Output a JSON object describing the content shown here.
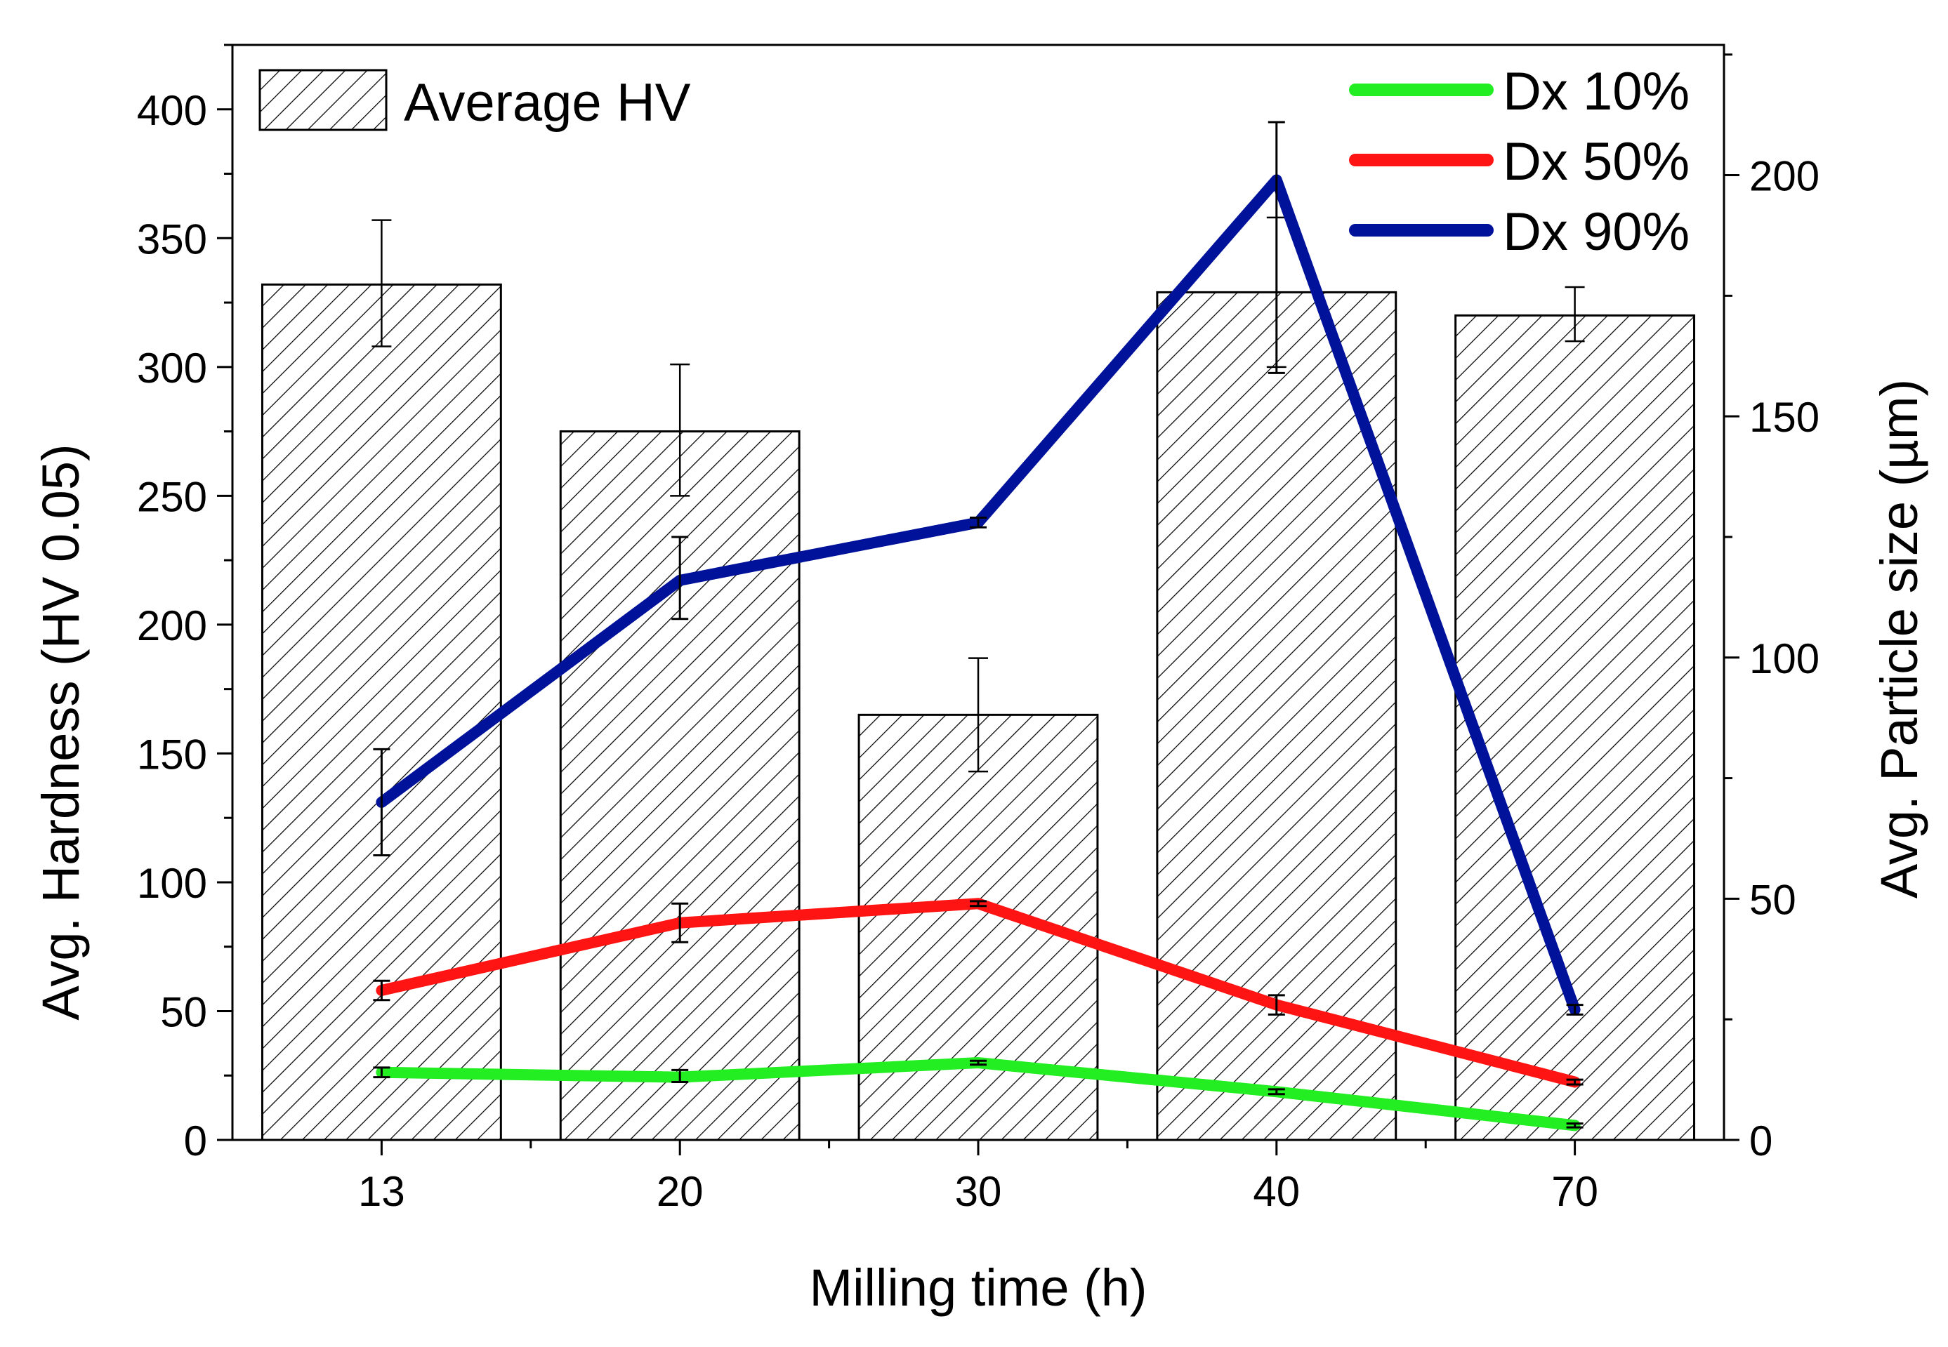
{
  "chart_data": {
    "type": "bar",
    "categories": [
      "13",
      "20",
      "30",
      "40",
      "70"
    ],
    "xlabel": "Milling time (h)",
    "ylabel_left": "Avg. Hardness (HV 0.05)",
    "ylabel_right": "Avg. Particle size (µm)",
    "ylim_left": [
      0,
      425
    ],
    "ylim_right": [
      0,
      227
    ],
    "yticks_left": [
      0,
      50,
      100,
      150,
      200,
      250,
      300,
      350,
      400
    ],
    "yticks_right": [
      0,
      50,
      100,
      150,
      200
    ],
    "bars": {
      "name": "Average HV",
      "values": [
        332,
        275,
        165,
        329,
        320
      ],
      "err_low": [
        308,
        250,
        143,
        300,
        310
      ],
      "err_high": [
        357,
        301,
        187,
        358,
        331
      ]
    },
    "series": [
      {
        "name": "Dx 10%",
        "color": "#22ee22",
        "values": [
          14,
          13,
          16,
          10,
          3
        ],
        "err_low": [
          13,
          12,
          15.6,
          9.5,
          2.6
        ],
        "err_high": [
          15,
          14.5,
          16.4,
          10.5,
          3.4
        ]
      },
      {
        "name": "Dx 50%",
        "color": "#ff1414",
        "values": [
          31,
          45,
          49,
          28,
          12
        ],
        "err_low": [
          29,
          41,
          48.5,
          26,
          11.5
        ],
        "err_high": [
          33,
          49,
          49.5,
          30,
          12.5
        ]
      },
      {
        "name": "Dx 90%",
        "color": "#00129a",
        "values": [
          70,
          116,
          128,
          199,
          27
        ],
        "err_low": [
          59,
          108,
          127,
          159,
          26
        ],
        "err_high": [
          81,
          125,
          129,
          211,
          28
        ]
      }
    ]
  }
}
